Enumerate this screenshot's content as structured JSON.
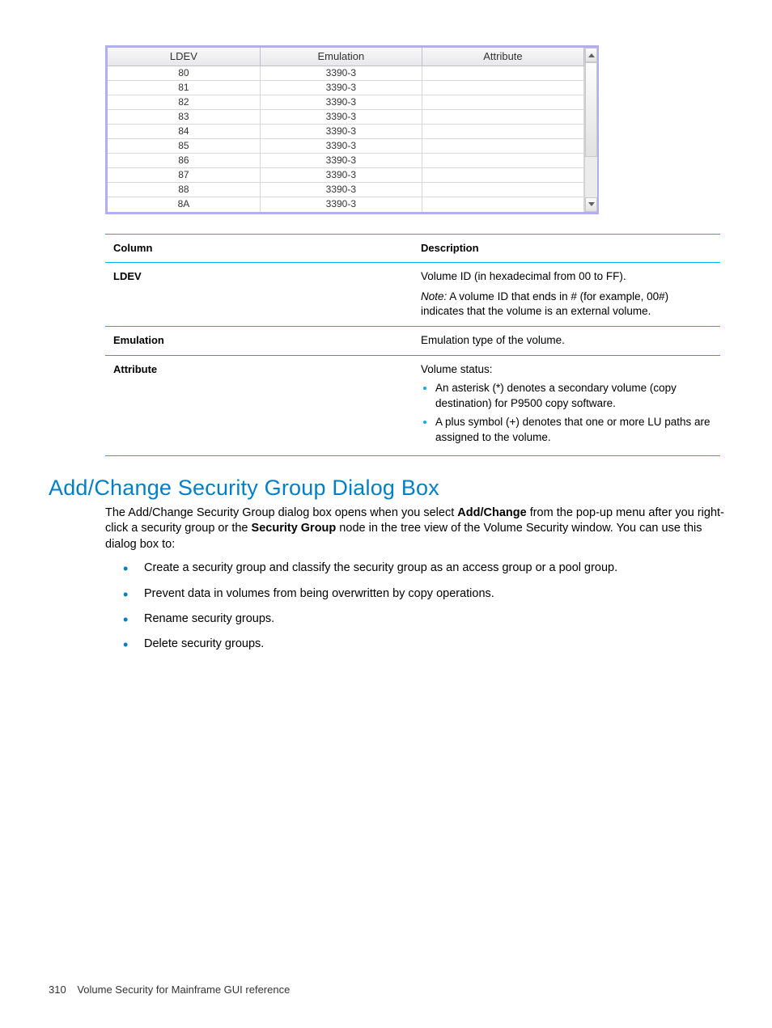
{
  "grid": {
    "columns": [
      "LDEV",
      "Emulation",
      "Attribute"
    ],
    "col_widths": [
      "32%",
      "34%",
      "34%"
    ],
    "rows": [
      {
        "ldev": "80",
        "emulation": "3390-3",
        "attr": ""
      },
      {
        "ldev": "81",
        "emulation": "3390-3",
        "attr": ""
      },
      {
        "ldev": "82",
        "emulation": "3390-3",
        "attr": ""
      },
      {
        "ldev": "83",
        "emulation": "3390-3",
        "attr": ""
      },
      {
        "ldev": "84",
        "emulation": "3390-3",
        "attr": ""
      },
      {
        "ldev": "85",
        "emulation": "3390-3",
        "attr": ""
      },
      {
        "ldev": "86",
        "emulation": "3390-3",
        "attr": ""
      },
      {
        "ldev": "87",
        "emulation": "3390-3",
        "attr": ""
      },
      {
        "ldev": "88",
        "emulation": "3390-3",
        "attr": ""
      },
      {
        "ldev": "8A",
        "emulation": "3390-3",
        "attr": ""
      }
    ],
    "border_color": "#b0b0f0",
    "header_bg": "#e8e8eb"
  },
  "desc": {
    "head_col": "Column",
    "head_desc": "Description",
    "rows": [
      {
        "col": "LDEV",
        "p1": "Volume ID (in hexadecimal from 00 to FF).",
        "note_label": "Note:",
        "note_text": " A volume ID that ends in # (for example, 00#) indicates that the volume is an external volume."
      },
      {
        "col": "Emulation",
        "p1": "Emulation type of the volume."
      },
      {
        "col": "Attribute",
        "p1": "Volume status:",
        "bullets": [
          "An asterisk (*) denotes a secondary volume (copy destination) for P9500 copy software.",
          "A plus symbol (+) denotes that one or more LU paths are assigned to the volume."
        ]
      }
    ],
    "border_color": "#00adef"
  },
  "section": {
    "title": "Add/Change Security Group Dialog Box",
    "para_pre": "The Add/Change Security Group dialog box opens when you select ",
    "bold1": "Add/Change",
    "para_mid": " from the pop-up menu after you right-click a security group or the ",
    "bold2": "Security Group",
    "para_post": " node in the tree view of the Volume Security window. You can use this dialog box to:",
    "bullets": [
      "Create a security group and classify the security group as an access group or a pool group.",
      "Prevent data in volumes from being overwritten by copy operations.",
      "Rename security groups.",
      "Delete security groups."
    ],
    "heading_color": "#007ec6"
  },
  "footer": {
    "page": "310",
    "title": "Volume Security for Mainframe GUI reference"
  }
}
